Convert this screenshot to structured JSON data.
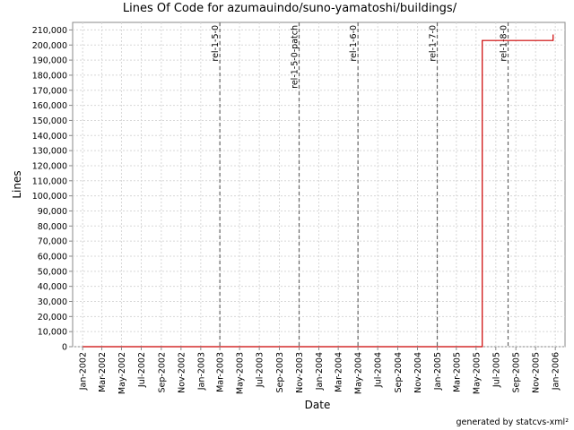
{
  "chart_data": {
    "type": "line",
    "title": "Lines Of Code for azumauindo/suno-yamatoshi/buildings/",
    "xlabel": "Date",
    "ylabel": "Lines",
    "footer": "generated by statcvs-xml²",
    "grid": true,
    "legend": "none",
    "x_range": [
      "2001-12-01",
      "2006-01-31"
    ],
    "y_range": [
      0,
      215000
    ],
    "y_ticks": [
      {
        "value": 0,
        "label": "0"
      },
      {
        "value": 10000,
        "label": "10,000"
      },
      {
        "value": 20000,
        "label": "20,000"
      },
      {
        "value": 30000,
        "label": "30,000"
      },
      {
        "value": 40000,
        "label": "40,000"
      },
      {
        "value": 50000,
        "label": "50,000"
      },
      {
        "value": 60000,
        "label": "60,000"
      },
      {
        "value": 70000,
        "label": "70,000"
      },
      {
        "value": 80000,
        "label": "80,000"
      },
      {
        "value": 90000,
        "label": "90,000"
      },
      {
        "value": 100000,
        "label": "100,000"
      },
      {
        "value": 110000,
        "label": "110,000"
      },
      {
        "value": 120000,
        "label": "120,000"
      },
      {
        "value": 130000,
        "label": "130,000"
      },
      {
        "value": 140000,
        "label": "140,000"
      },
      {
        "value": 150000,
        "label": "150,000"
      },
      {
        "value": 160000,
        "label": "160,000"
      },
      {
        "value": 170000,
        "label": "170,000"
      },
      {
        "value": 180000,
        "label": "180,000"
      },
      {
        "value": 190000,
        "label": "190,000"
      },
      {
        "value": 200000,
        "label": "200,000"
      },
      {
        "value": 210000,
        "label": "210,000"
      }
    ],
    "x_ticks": [
      {
        "date": "2002-01-01",
        "label": "Jan-2002"
      },
      {
        "date": "2002-03-01",
        "label": "Mar-2002"
      },
      {
        "date": "2002-05-01",
        "label": "May-2002"
      },
      {
        "date": "2002-07-01",
        "label": "Jul-2002"
      },
      {
        "date": "2002-09-01",
        "label": "Sep-2002"
      },
      {
        "date": "2002-11-01",
        "label": "Nov-2002"
      },
      {
        "date": "2003-01-01",
        "label": "Jan-2003"
      },
      {
        "date": "2003-03-01",
        "label": "Mar-2003"
      },
      {
        "date": "2003-05-01",
        "label": "May-2003"
      },
      {
        "date": "2003-07-01",
        "label": "Jul-2003"
      },
      {
        "date": "2003-09-01",
        "label": "Sep-2003"
      },
      {
        "date": "2003-11-01",
        "label": "Nov-2003"
      },
      {
        "date": "2004-01-01",
        "label": "Jan-2004"
      },
      {
        "date": "2004-03-01",
        "label": "Mar-2004"
      },
      {
        "date": "2004-05-01",
        "label": "May-2004"
      },
      {
        "date": "2004-07-01",
        "label": "Jul-2004"
      },
      {
        "date": "2004-09-01",
        "label": "Sep-2004"
      },
      {
        "date": "2004-11-01",
        "label": "Nov-2004"
      },
      {
        "date": "2005-01-01",
        "label": "Jan-2005"
      },
      {
        "date": "2005-03-01",
        "label": "Mar-2005"
      },
      {
        "date": "2005-05-01",
        "label": "May-2005"
      },
      {
        "date": "2005-07-01",
        "label": "Jul-2005"
      },
      {
        "date": "2005-09-01",
        "label": "Sep-2005"
      },
      {
        "date": "2005-11-01",
        "label": "Nov-2005"
      },
      {
        "date": "2006-01-01",
        "label": "Jan-2006"
      }
    ],
    "releases": [
      {
        "date": "2003-03-01",
        "label": "rel-1-5-0"
      },
      {
        "date": "2003-11-01",
        "label": "rel-1-5-0-patch"
      },
      {
        "date": "2004-05-01",
        "label": "rel-1-6-0"
      },
      {
        "date": "2005-01-01",
        "label": "rel-1-7-0"
      },
      {
        "date": "2005-08-08",
        "label": "rel-1-8-0"
      }
    ],
    "series": [
      {
        "color": "#cc0000",
        "points": [
          {
            "x": "2002-01-01",
            "y": 0
          },
          {
            "x": "2005-05-20",
            "y": 0
          },
          {
            "x": "2005-05-20",
            "y": 203000
          },
          {
            "x": "2005-12-25",
            "y": 203000
          },
          {
            "x": "2005-12-25",
            "y": 207000
          }
        ]
      }
    ]
  }
}
